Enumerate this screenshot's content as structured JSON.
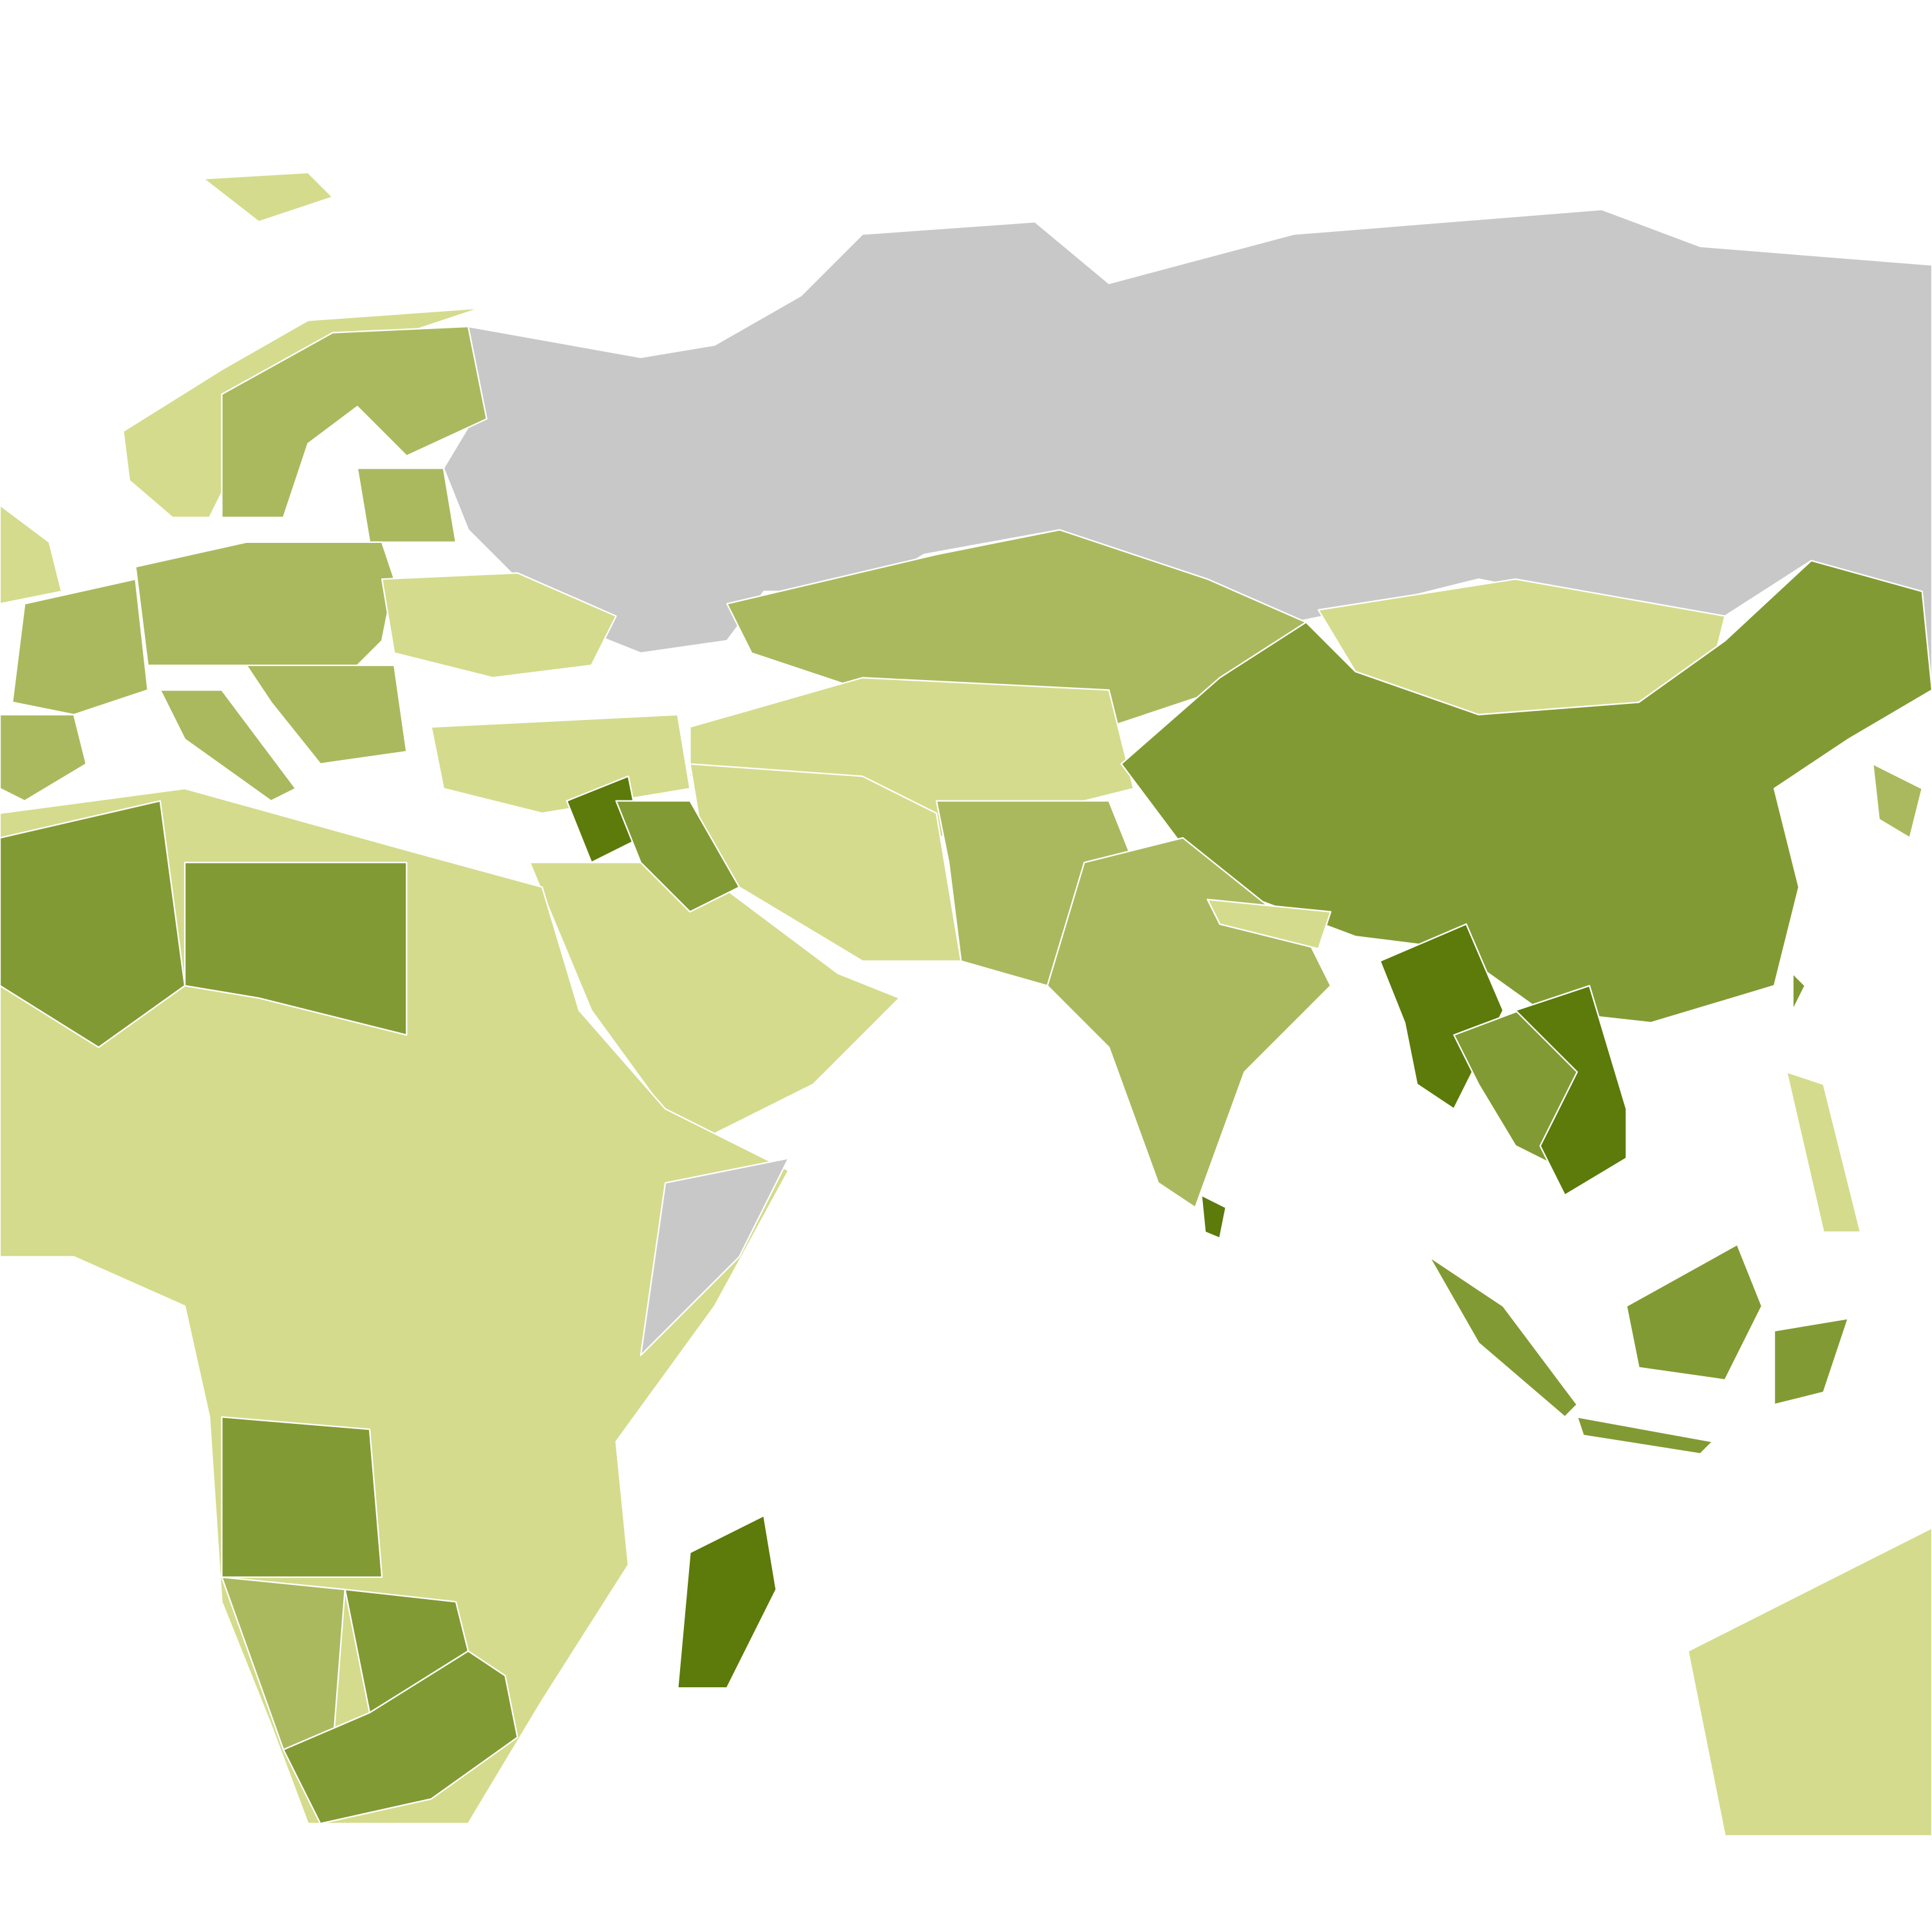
{
  "map": {
    "palette": [
      "#d4db8c",
      "#aab95e",
      "#829a33",
      "#5c7b0b"
    ],
    "no_data_color": "#c8c8c8"
  }
}
